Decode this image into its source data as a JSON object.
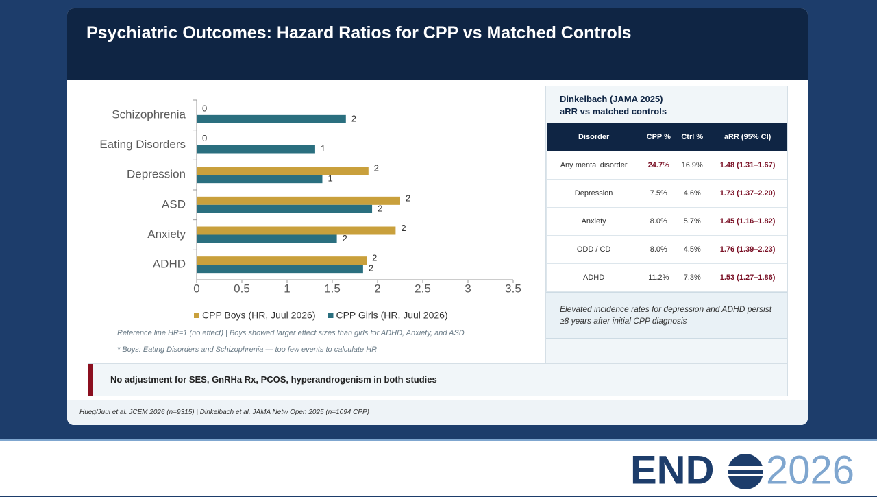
{
  "title": "Psychiatric Outcomes: Hazard Ratios for CPP vs Matched Controls",
  "chart_data": {
    "type": "hbar",
    "categories": [
      "Schizophrenia",
      "Eating Disorders",
      "Depression",
      "ASD",
      "Anxiety",
      "ADHD"
    ],
    "series": [
      {
        "name": "CPP Boys (HR, Juul 2026)",
        "color": "#c9a03c",
        "values": [
          0,
          0,
          1.9,
          2.25,
          2.2,
          1.88
        ],
        "value_labels": [
          "0",
          "0",
          "2",
          "2",
          "2",
          "2"
        ]
      },
      {
        "name": "CPP Girls (HR, Juul 2026)",
        "color": "#2a6f7f",
        "values": [
          1.65,
          1.31,
          1.39,
          1.94,
          1.55,
          1.84
        ],
        "value_labels": [
          "2",
          "1",
          "1",
          "2",
          "2",
          "2"
        ]
      }
    ],
    "xlim": [
      0,
      3.5
    ],
    "xticks": [
      0,
      0.5,
      1,
      1.5,
      2,
      2.5,
      3,
      3.5
    ],
    "notes": [
      "Reference line HR=1 (no effect)  |  Boys showed larger effect sizes than girls for ADHD, Anxiety, and ASD",
      "* Boys: Eating Disorders and Schizophrenia — too few events to calculate HR"
    ]
  },
  "table": {
    "title": "Dinkelbach (JAMA 2025)",
    "subtitle": "aRR vs matched controls",
    "header": [
      "Disorder",
      "CPP %",
      "Ctrl %",
      "aRR (95% CI)"
    ],
    "rows": [
      [
        "Any mental disorder",
        "24.7%",
        "16.9%",
        "1.48 (1.31–1.67)"
      ],
      [
        "Depression",
        "7.5%",
        "4.6%",
        "1.73 (1.37–2.20)"
      ],
      [
        "Anxiety",
        "8.0%",
        "5.7%",
        "1.45 (1.16–1.82)"
      ],
      [
        "ODD / CD",
        "8.0%",
        "4.5%",
        "1.76 (1.39–2.23)"
      ],
      [
        "ADHD",
        "11.2%",
        "7.3%",
        "1.53 (1.27–1.86)"
      ]
    ],
    "callout": "Elevated incidence rates for depression and ADHD persist ≥8 years after initial CPP diagnosis"
  },
  "banner": "No adjustment for SES, GnRHa Rx, PCOS, hyperandrogenism in both studies",
  "footer": "Hueg/Juul et al. JCEM 2026 (n=9315) | Dinkelbach et al. JAMA Netw Open 2025 (n=1094 CPP)",
  "logo": {
    "brand": "END",
    "year": "2026"
  }
}
